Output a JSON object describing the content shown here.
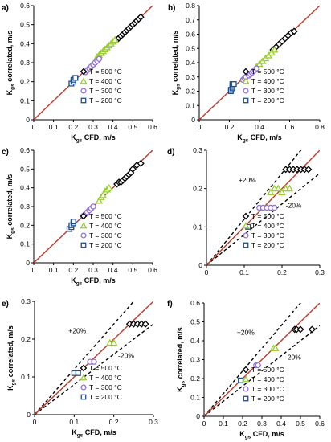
{
  "figure": {
    "background": "#ffffff",
    "parity_line_color": "#c0392b",
    "band_line_color": "#000000",
    "series_style": {
      "T = 500 °C": {
        "marker": "diamond",
        "color": "#000000",
        "fill": "#ffffff"
      },
      "T = 400 °C": {
        "marker": "triangle",
        "color": "#9acd32",
        "fill": "#ffffff"
      },
      "T = 300 °C": {
        "marker": "circle",
        "color": "#9370db",
        "fill": "#ffffff"
      },
      "T = 200 °C": {
        "marker": "square",
        "color": "#1f4e8c",
        "fill": "#ffffff"
      }
    }
  },
  "chart_data": [
    {
      "panel": "a)",
      "type": "scatter",
      "xlabel": "K_gs CFD, m/s",
      "ylabel": "K_gs correlated, m/s",
      "xlim": [
        0,
        0.6
      ],
      "ylim": [
        0,
        0.6
      ],
      "xticks": [
        0,
        0.1,
        0.2,
        0.3,
        0.4,
        0.5,
        0.6
      ],
      "yticks": [
        0,
        0.1,
        0.2,
        0.3,
        0.4,
        0.5,
        0.6
      ],
      "parity_line": true,
      "legend": "bottom-right",
      "series": [
        {
          "name": "T = 500 °C",
          "points": [
            [
              0.42,
              0.42
            ],
            [
              0.43,
              0.43
            ],
            [
              0.44,
              0.44
            ],
            [
              0.45,
              0.45
            ],
            [
              0.46,
              0.46
            ],
            [
              0.47,
              0.47
            ],
            [
              0.48,
              0.48
            ],
            [
              0.49,
              0.49
            ],
            [
              0.5,
              0.5
            ],
            [
              0.51,
              0.51
            ],
            [
              0.52,
              0.52
            ],
            [
              0.53,
              0.53
            ],
            [
              0.54,
              0.54
            ]
          ]
        },
        {
          "name": "T = 400 °C",
          "points": [
            [
              0.32,
              0.33
            ],
            [
              0.33,
              0.34
            ],
            [
              0.34,
              0.35
            ],
            [
              0.35,
              0.36
            ],
            [
              0.36,
              0.37
            ],
            [
              0.37,
              0.38
            ],
            [
              0.38,
              0.39
            ],
            [
              0.39,
              0.4
            ],
            [
              0.4,
              0.41
            ],
            [
              0.41,
              0.42
            ]
          ]
        },
        {
          "name": "T = 300 °C",
          "points": [
            [
              0.26,
              0.25
            ],
            [
              0.27,
              0.26
            ],
            [
              0.28,
              0.27
            ],
            [
              0.29,
              0.28
            ],
            [
              0.3,
              0.29
            ],
            [
              0.31,
              0.3
            ],
            [
              0.32,
              0.31
            ],
            [
              0.33,
              0.32
            ]
          ]
        },
        {
          "name": "T = 200 °C",
          "points": [
            [
              0.19,
              0.19
            ],
            [
              0.2,
              0.2
            ],
            [
              0.2,
              0.21
            ],
            [
              0.21,
              0.22
            ],
            [
              0.21,
              0.22
            ]
          ]
        }
      ]
    },
    {
      "panel": "b)",
      "type": "scatter",
      "xlabel": "K_gs CFD, m/s",
      "ylabel": "K_gs correlated, m/s",
      "xlim": [
        0,
        0.8
      ],
      "ylim": [
        0,
        0.8
      ],
      "xticks": [
        0,
        0.2,
        0.4,
        0.6,
        0.8
      ],
      "yticks": [
        0,
        0.1,
        0.2,
        0.3,
        0.4,
        0.5,
        0.6,
        0.7,
        0.8
      ],
      "parity_line": true,
      "legend": "bottom-right",
      "series": [
        {
          "name": "T = 500 °C",
          "points": [
            [
              0.49,
              0.49
            ],
            [
              0.51,
              0.51
            ],
            [
              0.53,
              0.53
            ],
            [
              0.55,
              0.55
            ],
            [
              0.57,
              0.57
            ],
            [
              0.59,
              0.59
            ],
            [
              0.61,
              0.61
            ],
            [
              0.63,
              0.62
            ]
          ]
        },
        {
          "name": "T = 400 °C",
          "points": [
            [
              0.38,
              0.37
            ],
            [
              0.4,
              0.39
            ],
            [
              0.42,
              0.41
            ],
            [
              0.44,
              0.43
            ],
            [
              0.46,
              0.45
            ],
            [
              0.48,
              0.47
            ],
            [
              0.5,
              0.49
            ]
          ]
        },
        {
          "name": "T = 300 °C",
          "points": [
            [
              0.29,
              0.28
            ],
            [
              0.3,
              0.29
            ],
            [
              0.31,
              0.3
            ],
            [
              0.33,
              0.31
            ],
            [
              0.34,
              0.32
            ],
            [
              0.35,
              0.33
            ],
            [
              0.36,
              0.34
            ],
            [
              0.37,
              0.35
            ],
            [
              0.38,
              0.36
            ]
          ]
        },
        {
          "name": "T = 200 °C",
          "points": [
            [
              0.21,
              0.2
            ],
            [
              0.21,
              0.21
            ],
            [
              0.22,
              0.22
            ],
            [
              0.22,
              0.23
            ],
            [
              0.22,
              0.24
            ],
            [
              0.22,
              0.25
            ],
            [
              0.23,
              0.25
            ]
          ]
        }
      ]
    },
    {
      "panel": "c)",
      "type": "scatter",
      "xlabel": "K_gs CFD, m/s",
      "ylabel": "K_gs correlated, m/s",
      "xlim": [
        0,
        0.6
      ],
      "ylim": [
        0,
        0.6
      ],
      "xticks": [
        0,
        0.1,
        0.2,
        0.3,
        0.4,
        0.5,
        0.6
      ],
      "yticks": [
        0,
        0.1,
        0.2,
        0.3,
        0.4,
        0.5,
        0.6
      ],
      "parity_line": true,
      "legend": "bottom-right",
      "series": [
        {
          "name": "T = 500 °C",
          "points": [
            [
              0.42,
              0.42
            ],
            [
              0.43,
              0.43
            ],
            [
              0.44,
              0.43
            ],
            [
              0.45,
              0.44
            ],
            [
              0.46,
              0.45
            ],
            [
              0.47,
              0.46
            ],
            [
              0.48,
              0.47
            ],
            [
              0.49,
              0.48
            ],
            [
              0.5,
              0.5
            ],
            [
              0.52,
              0.52
            ],
            [
              0.54,
              0.53
            ]
          ]
        },
        {
          "name": "T = 400 °C",
          "points": [
            [
              0.33,
              0.33
            ],
            [
              0.34,
              0.35
            ],
            [
              0.35,
              0.36
            ],
            [
              0.36,
              0.38
            ],
            [
              0.37,
              0.39
            ],
            [
              0.38,
              0.4
            ]
          ]
        },
        {
          "name": "T = 300 °C",
          "points": [
            [
              0.25,
              0.25
            ],
            [
              0.26,
              0.26
            ],
            [
              0.27,
              0.27
            ],
            [
              0.28,
              0.28
            ],
            [
              0.29,
              0.29
            ],
            [
              0.3,
              0.3
            ]
          ]
        },
        {
          "name": "T = 200 °C",
          "points": [
            [
              0.18,
              0.18
            ],
            [
              0.19,
              0.19
            ],
            [
              0.19,
              0.2
            ],
            [
              0.2,
              0.21
            ],
            [
              0.2,
              0.22
            ]
          ]
        }
      ]
    },
    {
      "panel": "d)",
      "type": "scatter",
      "xlabel": "",
      "ylabel": "",
      "xlim": [
        0,
        0.3
      ],
      "ylim": [
        0,
        0.3
      ],
      "xticks": [
        0,
        0.1,
        0.2,
        0.3
      ],
      "yticks": [
        0,
        0.1,
        0.2,
        0.3
      ],
      "parity_line": true,
      "band_lines": [
        1.2,
        0.8
      ],
      "band_labels": [
        "+20%",
        "-20%"
      ],
      "legend": "bottom-right",
      "series": [
        {
          "name": "T = 500 °C",
          "points": [
            [
              0.21,
              0.25
            ],
            [
              0.22,
              0.25
            ],
            [
              0.23,
              0.25
            ],
            [
              0.24,
              0.25
            ],
            [
              0.25,
              0.25
            ],
            [
              0.26,
              0.25
            ],
            [
              0.27,
              0.25
            ]
          ]
        },
        {
          "name": "T = 400 °C",
          "points": [
            [
              0.17,
              0.19
            ],
            [
              0.18,
              0.2
            ],
            [
              0.19,
              0.2
            ],
            [
              0.2,
              0.19
            ],
            [
              0.21,
              0.2
            ],
            [
              0.22,
              0.2
            ]
          ]
        },
        {
          "name": "T = 300 °C",
          "points": [
            [
              0.14,
              0.15
            ],
            [
              0.15,
              0.15
            ],
            [
              0.16,
              0.15
            ],
            [
              0.17,
              0.15
            ],
            [
              0.18,
              0.15
            ]
          ]
        },
        {
          "name": "T = 200 °C",
          "points": [
            [
              0.11,
              0.1
            ]
          ]
        }
      ]
    },
    {
      "panel": "e)",
      "type": "scatter",
      "xlabel": "K_gs CFD, m/s",
      "ylabel": "K_gs correlated, m/s",
      "xlim": [
        0,
        0.3
      ],
      "ylim": [
        0,
        0.3
      ],
      "xticks": [
        0,
        0.1,
        0.2,
        0.3
      ],
      "yticks": [
        0,
        0.1,
        0.2,
        0.3
      ],
      "parity_line": true,
      "band_lines": [
        1.2,
        0.8
      ],
      "band_labels": [
        "+20%",
        "-20%"
      ],
      "legend": "bottom-right",
      "series": [
        {
          "name": "T = 500 °C",
          "points": [
            [
              0.24,
              0.24
            ],
            [
              0.25,
              0.24
            ],
            [
              0.26,
              0.24
            ],
            [
              0.27,
              0.24
            ],
            [
              0.28,
              0.24
            ]
          ]
        },
        {
          "name": "T = 400 °C",
          "points": [
            [
              0.19,
              0.19
            ],
            [
              0.2,
              0.19
            ],
            [
              0.2,
              0.19
            ]
          ]
        },
        {
          "name": "T = 300 °C",
          "points": [
            [
              0.14,
              0.14
            ],
            [
              0.15,
              0.14
            ]
          ]
        },
        {
          "name": "T = 200 °C",
          "points": [
            [
              0.1,
              0.11
            ],
            [
              0.11,
              0.11
            ]
          ]
        }
      ]
    },
    {
      "panel": "f)",
      "type": "scatter",
      "xlabel": "K_gs CFD, m/s",
      "ylabel": "K_gs correlated, m/s",
      "xlim": [
        0,
        0.6
      ],
      "ylim": [
        0,
        0.6
      ],
      "xticks": [
        0,
        0.1,
        0.2,
        0.3,
        0.4,
        0.5,
        0.6
      ],
      "yticks": [
        0,
        0.1,
        0.2,
        0.3,
        0.4,
        0.5,
        0.6
      ],
      "parity_line": true,
      "band_lines": [
        1.2,
        0.8
      ],
      "band_labels": [
        "+20%",
        "-20%"
      ],
      "legend": "bottom-right",
      "series": [
        {
          "name": "T = 500 °C",
          "points": [
            [
              0.47,
              0.46
            ],
            [
              0.48,
              0.46
            ],
            [
              0.5,
              0.46
            ],
            [
              0.56,
              0.46
            ]
          ]
        },
        {
          "name": "T = 400 °C",
          "points": [
            [
              0.36,
              0.36
            ],
            [
              0.37,
              0.36
            ]
          ]
        },
        {
          "name": "T = 300 °C",
          "points": [
            [
              0.27,
              0.27
            ],
            [
              0.28,
              0.27
            ]
          ]
        },
        {
          "name": "T = 200 °C",
          "points": [
            [
              0.19,
              0.19
            ]
          ]
        }
      ]
    }
  ]
}
